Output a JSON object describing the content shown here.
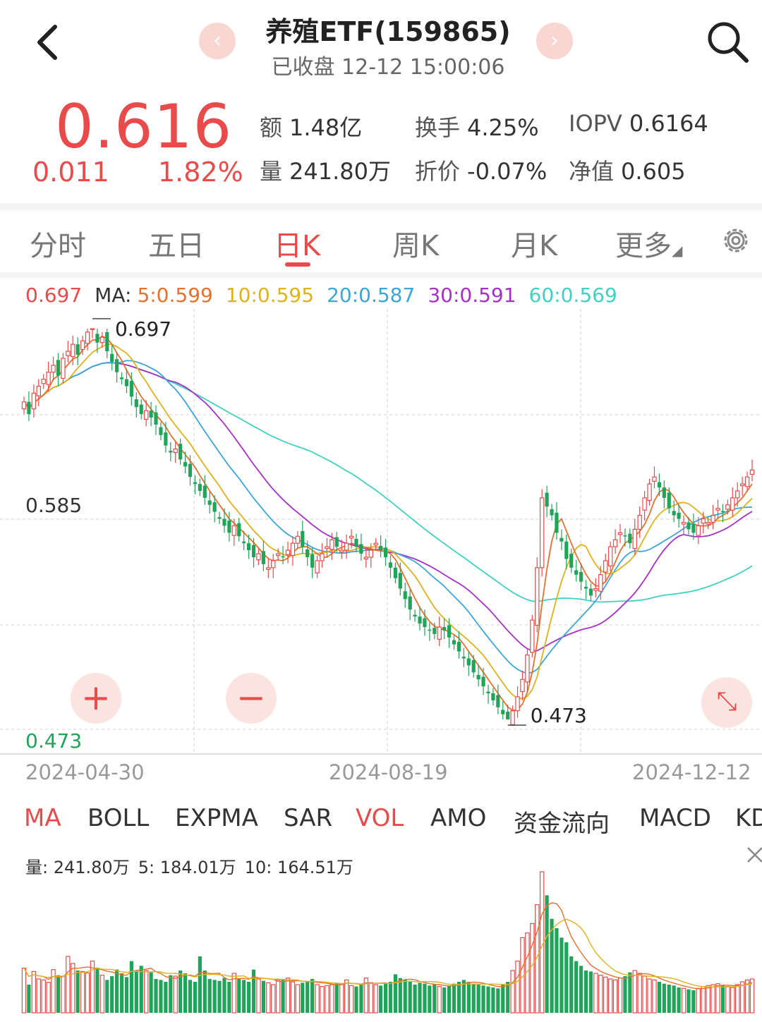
{
  "header": {
    "title": "养殖ETF(159865)",
    "subtitle": "已收盘 12-12 15:00:06",
    "prev_glyph": "‹",
    "next_glyph": "›"
  },
  "quote": {
    "price": "0.616",
    "change": "0.011",
    "change_pct": "1.82%",
    "stats": {
      "amount_label": "额",
      "amount": "1.48亿",
      "turnover_label": "换手",
      "turnover": "4.25%",
      "iopv_label": "IOPV",
      "iopv": "0.6164",
      "volume_label": "量",
      "volume": "241.80万",
      "discount_label": "折价",
      "discount": "-0.07%",
      "nav_label": "净值",
      "nav": "0.605"
    }
  },
  "tabs": [
    "分时",
    "五日",
    "日K",
    "周K",
    "月K",
    "更多"
  ],
  "active_tab": "日K",
  "ma_legend": {
    "price": "0.697",
    "ma_label": "MA:",
    "ma5": "5:0.599",
    "ma10": "10:0.595",
    "ma20": "20:0.587",
    "ma30": "30:0.591",
    "ma60": "60:0.569"
  },
  "chart_labels": {
    "high_marker": "0.697",
    "low_marker": "0.473",
    "axis_mid": "0.585",
    "axis_low": "0.473",
    "dates": [
      "2024-04-30",
      "2024-08-19",
      "2024-12-12"
    ]
  },
  "zoom": {
    "plus": "+",
    "minus": "−"
  },
  "indicators": [
    "MA",
    "BOLL",
    "EXPMA",
    "SAR",
    "VOL",
    "AMO",
    "资金流向",
    "MACD",
    "KD"
  ],
  "active_indicators": [
    "MA",
    "VOL"
  ],
  "volume_legend": {
    "vol": "量: 241.80万",
    "ma5": "5: 184.01万",
    "ma10": "10: 164.51万"
  },
  "colors": {
    "up": "#e94a4a",
    "down": "#1fa55a",
    "ma5": "#e8702a",
    "ma10": "#e0b21a",
    "ma20": "#3aa7d8",
    "ma30": "#a631c8",
    "ma60": "#3fd1c4"
  },
  "chart_data": {
    "type": "candlestick",
    "y_max": 0.697,
    "y_min": 0.473,
    "closes": [
      0.655,
      0.648,
      0.66,
      0.664,
      0.668,
      0.672,
      0.676,
      0.67,
      0.68,
      0.684,
      0.688,
      0.682,
      0.69,
      0.695,
      0.697,
      0.689,
      0.692,
      0.684,
      0.678,
      0.672,
      0.668,
      0.664,
      0.658,
      0.652,
      0.648,
      0.65,
      0.646,
      0.642,
      0.636,
      0.63,
      0.626,
      0.628,
      0.622,
      0.618,
      0.612,
      0.608,
      0.604,
      0.6,
      0.596,
      0.592,
      0.588,
      0.584,
      0.58,
      0.584,
      0.578,
      0.574,
      0.57,
      0.566,
      0.568,
      0.562,
      0.56,
      0.564,
      0.568,
      0.566,
      0.57,
      0.574,
      0.578,
      0.572,
      0.566,
      0.56,
      0.564,
      0.568,
      0.572,
      0.576,
      0.572,
      0.57,
      0.574,
      0.578,
      0.572,
      0.568,
      0.566,
      0.57,
      0.574,
      0.57,
      0.566,
      0.56,
      0.554,
      0.548,
      0.542,
      0.536,
      0.532,
      0.528,
      0.526,
      0.524,
      0.522,
      0.526,
      0.524,
      0.52,
      0.516,
      0.512,
      0.508,
      0.504,
      0.5,
      0.496,
      0.492,
      0.488,
      0.484,
      0.48,
      0.476,
      0.473,
      0.478,
      0.486,
      0.496,
      0.51,
      0.53,
      0.56,
      0.6,
      0.595,
      0.59,
      0.58,
      0.575,
      0.565,
      0.56,
      0.556,
      0.552,
      0.548,
      0.544,
      0.548,
      0.556,
      0.564,
      0.572,
      0.576,
      0.58,
      0.578,
      0.574,
      0.582,
      0.59,
      0.6,
      0.608,
      0.612,
      0.606,
      0.6,
      0.594,
      0.59,
      0.588,
      0.586,
      0.582,
      0.58,
      0.584,
      0.588,
      0.586,
      0.59,
      0.594,
      0.592,
      0.596,
      0.6,
      0.604,
      0.608,
      0.612,
      0.616
    ],
    "volumes": [
      95,
      60,
      88,
      72,
      70,
      65,
      92,
      80,
      78,
      120,
      105,
      90,
      88,
      85,
      110,
      96,
      80,
      70,
      78,
      92,
      84,
      76,
      110,
      88,
      100,
      90,
      86,
      72,
      70,
      66,
      80,
      78,
      90,
      84,
      70,
      66,
      120,
      90,
      72,
      70,
      68,
      74,
      66,
      84,
      72,
      70,
      66,
      92,
      72,
      68,
      64,
      60,
      70,
      72,
      74,
      66,
      60,
      64,
      68,
      72,
      60,
      56,
      58,
      60,
      64,
      62,
      70,
      58,
      56,
      60,
      74,
      64,
      60,
      58,
      62,
      66,
      82,
      74,
      70,
      66,
      60,
      64,
      62,
      58,
      60,
      56,
      54,
      58,
      62,
      66,
      70,
      66,
      62,
      60,
      58,
      56,
      54,
      52,
      60,
      66,
      90,
      110,
      160,
      170,
      190,
      230,
      300,
      250,
      200,
      180,
      160,
      150,
      120,
      110,
      100,
      90,
      88,
      84,
      80,
      76,
      72,
      70,
      74,
      78,
      86,
      90,
      84,
      78,
      72,
      70,
      66,
      62,
      60,
      58,
      54,
      52,
      50,
      48,
      52,
      56,
      58,
      60,
      62,
      58,
      56,
      54,
      60,
      66,
      70,
      72
    ]
  }
}
